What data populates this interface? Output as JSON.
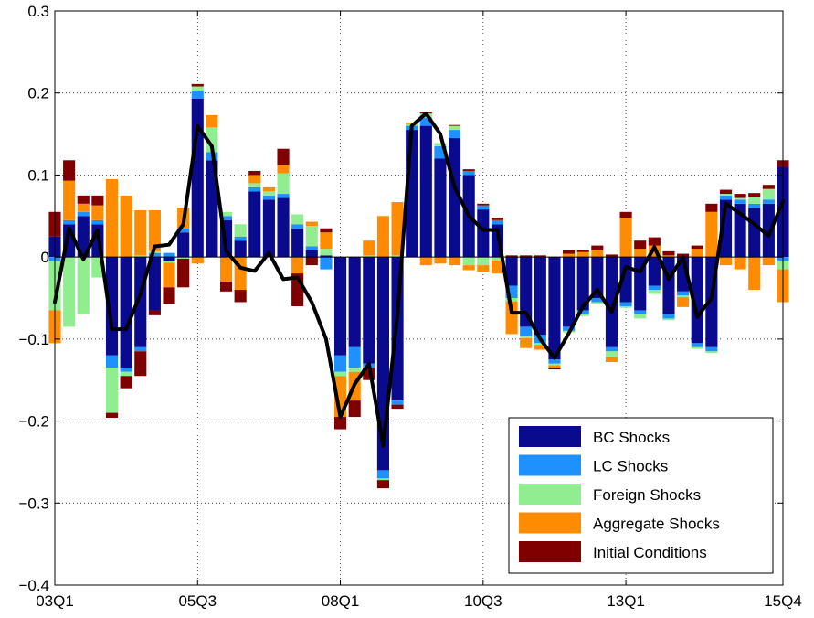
{
  "chart_data": {
    "type": "bar",
    "stacked": true,
    "title": "",
    "xlabel": "",
    "ylabel": "",
    "ylim": [
      -0.4,
      0.3
    ],
    "yticks": [
      "0.3",
      "0.2",
      "0.1",
      "0",
      "−0.1",
      "−0.2",
      "−0.3",
      "−0.4"
    ],
    "ytick_values": [
      0.3,
      0.2,
      0.1,
      0,
      -0.1,
      -0.2,
      -0.3,
      -0.4
    ],
    "xticks": [
      "03Q1",
      "05Q3",
      "08Q1",
      "10Q3",
      "13Q1",
      "15Q4"
    ],
    "xtick_index": [
      0,
      10,
      20,
      30,
      40,
      51
    ],
    "grid": true,
    "legend_position": "bottom-right",
    "categories": [
      "03Q1",
      "03Q2",
      "03Q3",
      "03Q4",
      "04Q1",
      "04Q2",
      "04Q3",
      "04Q4",
      "05Q1",
      "05Q2",
      "05Q3",
      "05Q4",
      "06Q1",
      "06Q2",
      "06Q3",
      "06Q4",
      "07Q1",
      "07Q2",
      "07Q3",
      "07Q4",
      "08Q1",
      "08Q2",
      "08Q3",
      "08Q4",
      "09Q1",
      "09Q2",
      "09Q3",
      "09Q4",
      "10Q1",
      "10Q2",
      "10Q3",
      "10Q4",
      "11Q1",
      "11Q2",
      "11Q3",
      "11Q4",
      "12Q1",
      "12Q2",
      "12Q3",
      "12Q4",
      "13Q1",
      "13Q2",
      "13Q3",
      "13Q4",
      "14Q1",
      "14Q2",
      "14Q3",
      "14Q4",
      "15Q1",
      "15Q2",
      "15Q3",
      "15Q4"
    ],
    "colors": {
      "BC Shocks": "#0a0a8e",
      "LC Shocks": "#1e90ff",
      "Foreign Shocks": "#90ee90",
      "Aggregate Shocks": "#ff8c00",
      "Initial Conditions": "#800000",
      "line": "#000000"
    },
    "series": [
      {
        "name": "BC Shocks",
        "values": [
          0.025,
          0.04,
          0.05,
          0.04,
          -0.12,
          -0.135,
          -0.11,
          -0.065,
          -0.005,
          0.03,
          0.193,
          0.118,
          0.045,
          0.02,
          0.08,
          0.07,
          0.072,
          0.035,
          0.008,
          0.002,
          -0.12,
          -0.11,
          -0.13,
          -0.26,
          -0.175,
          0.155,
          0.16,
          0.12,
          0.145,
          0.1,
          0.058,
          0.04,
          -0.035,
          -0.085,
          -0.095,
          -0.125,
          -0.085,
          -0.065,
          -0.05,
          -0.11,
          -0.055,
          -0.065,
          -0.035,
          -0.07,
          -0.042,
          -0.105,
          -0.11,
          0.07,
          0.065,
          0.06,
          0.065,
          0.11
        ]
      },
      {
        "name": "LC Shocks",
        "values": [
          -0.005,
          0.005,
          0.005,
          0.005,
          -0.015,
          -0.005,
          -0.005,
          0.005,
          0.005,
          0.005,
          0.01,
          0.01,
          0.005,
          0.005,
          0.005,
          0.005,
          0.005,
          0.005,
          0.005,
          -0.015,
          -0.02,
          -0.025,
          -0.005,
          -0.01,
          -0.005,
          0.005,
          0.01,
          0.015,
          0.01,
          0.005,
          0.005,
          0.005,
          -0.015,
          -0.012,
          -0.01,
          -0.005,
          -0.005,
          -0.005,
          -0.005,
          -0.005,
          -0.005,
          -0.005,
          -0.005,
          -0.005,
          -0.005,
          -0.005,
          -0.005,
          0.005,
          0.005,
          0.005,
          0.005,
          -0.005
        ]
      },
      {
        "name": "Foreign Shocks",
        "values": [
          -0.06,
          -0.085,
          -0.07,
          -0.025,
          -0.055,
          -0.005,
          0.002,
          0.002,
          -0.002,
          -0.002,
          0.005,
          0.03,
          0.005,
          0.015,
          0.005,
          0.005,
          0.025,
          0.012,
          0.025,
          0.008,
          -0.005,
          -0.005,
          0.002,
          -0.002,
          0.002,
          0.002,
          0.005,
          0.004,
          0.005,
          -0.01,
          -0.01,
          -0.004,
          -0.004,
          -0.002,
          -0.002,
          -0.002,
          -0.002,
          -0.002,
          -0.002,
          -0.007,
          -0.002,
          -0.005,
          -0.005,
          -0.002,
          -0.002,
          -0.002,
          -0.002,
          0.002,
          0.002,
          0.008,
          0.013,
          -0.01
        ]
      },
      {
        "name": "Aggregate Shocks",
        "values": [
          -0.04,
          0.048,
          0.01,
          0.018,
          0.095,
          0.075,
          0.055,
          0.05,
          -0.03,
          0.025,
          -0.008,
          0.015,
          -0.03,
          -0.04,
          0.01,
          0.005,
          0.01,
          -0.02,
          0.005,
          0.02,
          -0.05,
          -0.035,
          0.018,
          0.05,
          0.065,
          0.002,
          -0.01,
          -0.008,
          -0.01,
          -0.006,
          -0.008,
          -0.016,
          -0.04,
          -0.012,
          -0.006,
          -0.003,
          0.004,
          0.006,
          0.008,
          -0.006,
          0.048,
          0.01,
          0.014,
          0.002,
          -0.012,
          0.01,
          0.055,
          -0.01,
          -0.015,
          -0.04,
          -0.01,
          -0.04
        ]
      },
      {
        "name": "Initial Conditions",
        "values": [
          0.03,
          0.025,
          0.01,
          0.012,
          -0.006,
          -0.015,
          -0.03,
          -0.006,
          -0.02,
          -0.035,
          0.003,
          0.0,
          -0.012,
          -0.015,
          0.005,
          0.0,
          0.02,
          -0.04,
          -0.01,
          0.005,
          -0.015,
          -0.02,
          -0.015,
          -0.01,
          -0.005,
          0.0,
          0.002,
          0.0,
          0.001,
          0.002,
          0.002,
          0.003,
          0.002,
          0.002,
          0.002,
          -0.002,
          0.004,
          0.003,
          0.006,
          0.003,
          0.007,
          0.01,
          0.01,
          0.005,
          0.004,
          0.004,
          0.01,
          0.005,
          0.005,
          0.005,
          0.005,
          0.008
        ]
      }
    ],
    "line": {
      "name": "",
      "values": [
        -0.055,
        0.035,
        -0.003,
        0.033,
        -0.088,
        -0.088,
        -0.045,
        0.013,
        0.015,
        0.04,
        0.16,
        0.135,
        0.007,
        -0.013,
        -0.017,
        0.005,
        -0.027,
        -0.025,
        -0.055,
        -0.1,
        -0.195,
        -0.155,
        -0.13,
        -0.23,
        -0.07,
        0.16,
        0.175,
        0.15,
        0.085,
        0.05,
        0.033,
        0.033,
        -0.068,
        -0.068,
        -0.1,
        -0.123,
        -0.093,
        -0.06,
        -0.04,
        -0.067,
        -0.012,
        -0.018,
        0.012,
        -0.027,
        0.0,
        -0.073,
        -0.05,
        0.065,
        0.053,
        0.04,
        0.026,
        0.068
      ]
    },
    "legend": [
      "BC Shocks",
      "LC Shocks",
      "Foreign Shocks",
      "Aggregate Shocks",
      "Initial Conditions"
    ]
  }
}
